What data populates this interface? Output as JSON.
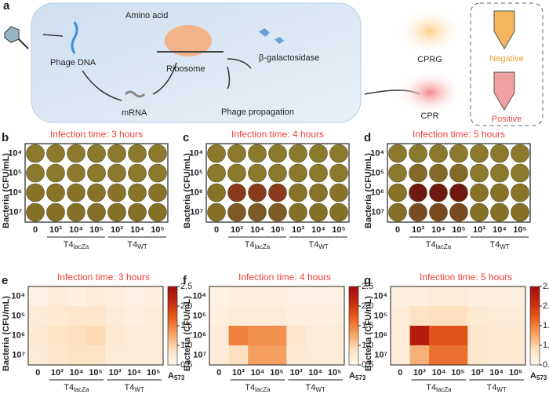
{
  "panel_a": {
    "label": "a",
    "texts": {
      "phage_dna": "Phage DNA",
      "amino_acid": "Amino acid",
      "ribosome": "Ribosome",
      "beta_gal": "β-galactosidase",
      "mrna": "mRNA",
      "propagation": "Phage propagation",
      "cprg": "CPRG",
      "cpr": "CPR",
      "negative": "Negative",
      "positive": "Positive"
    }
  },
  "y_axis_label": "Bacteria (CFU/mL)",
  "row_labels": [
    "10⁴",
    "10⁵",
    "10⁶",
    "10⁷"
  ],
  "column_labels": [
    "0",
    "10³",
    "10⁴",
    "10⁵",
    "10³",
    "10⁴",
    "10⁵"
  ],
  "groups": [
    {
      "base": "T4",
      "sub": "lacZa"
    },
    {
      "base": "T4",
      "sub": "WT"
    }
  ],
  "plates": [
    {
      "label": "b",
      "title": "Infection time: 3 hours",
      "wells": [
        [
          "#8b7a2e",
          "#8b7a2e",
          "#8b7a2e",
          "#8b7a2e",
          "#8b7a2e",
          "#8b7a2e",
          "#8b7a2e"
        ],
        [
          "#8b7a2e",
          "#8b7a2e",
          "#8b7a2e",
          "#8b7a2e",
          "#8b7a2e",
          "#8b7a2e",
          "#8b7a2e"
        ],
        [
          "#887429",
          "#887429",
          "#887429",
          "#887429",
          "#887429",
          "#887429",
          "#887429"
        ],
        [
          "#857028",
          "#857028",
          "#857028",
          "#857028",
          "#857028",
          "#857028",
          "#857028"
        ]
      ]
    },
    {
      "label": "c",
      "title": "Infection time: 4 hours",
      "wells": [
        [
          "#8b7a2e",
          "#8b7a2e",
          "#8b7a2e",
          "#8b7a2e",
          "#8b7a2e",
          "#8b7a2e",
          "#8b7a2e"
        ],
        [
          "#8b7a2e",
          "#8b7a2e",
          "#8b7a2e",
          "#8b7a2e",
          "#8b7a2e",
          "#8b7a2e",
          "#8b7a2e"
        ],
        [
          "#887429",
          "#8a3a1c",
          "#8a3a1c",
          "#8a3a1c",
          "#887429",
          "#887429",
          "#887429"
        ],
        [
          "#857028",
          "#7d5a26",
          "#7d5a26",
          "#7d5a26",
          "#857028",
          "#857028",
          "#857028"
        ]
      ]
    },
    {
      "label": "d",
      "title": "Infection time: 5 hours",
      "wells": [
        [
          "#8b7a2e",
          "#8b7a2e",
          "#8b7a2e",
          "#8b7a2e",
          "#8b7a2e",
          "#8b7a2e",
          "#8b7a2e"
        ],
        [
          "#8b7a2e",
          "#846a28",
          "#846a28",
          "#846a28",
          "#8b7a2e",
          "#8b7a2e",
          "#8b7a2e"
        ],
        [
          "#887429",
          "#6e1a10",
          "#6e1a10",
          "#6e1a10",
          "#887429",
          "#887429",
          "#887429"
        ],
        [
          "#857028",
          "#7a4a20",
          "#7a4a20",
          "#7a4a20",
          "#857028",
          "#857028",
          "#857028"
        ]
      ]
    }
  ],
  "heatmaps": {
    "colorbar": {
      "label": {
        "base": "A",
        "sub": "573"
      },
      "lim": [
        0.5,
        2.5
      ],
      "ticks": [
        0.5,
        {
          "value": 1,
          "label": "1.0"
        },
        1.5,
        {
          "value": 2,
          "label": "2.0"
        },
        2.5
      ]
    },
    "colormap": [
      "#fff8f0",
      "#fde0c0",
      "#f5a060",
      "#e8601c",
      "#c62a10",
      "#9e1010"
    ],
    "panels": [
      {
        "label": "e",
        "title": "Infection time: 3 hours",
        "values": [
          [
            0.6,
            0.7,
            0.65,
            0.7,
            0.65,
            0.6,
            0.65
          ],
          [
            0.7,
            0.75,
            0.8,
            0.8,
            0.7,
            0.65,
            0.7
          ],
          [
            0.75,
            0.85,
            0.9,
            0.95,
            0.75,
            0.7,
            0.7
          ],
          [
            0.7,
            0.8,
            0.85,
            0.85,
            0.7,
            0.7,
            0.7
          ]
        ]
      },
      {
        "label": "f",
        "title": "Infection time: 4 hours",
        "values": [
          [
            0.6,
            0.65,
            0.65,
            0.65,
            0.6,
            0.6,
            0.6
          ],
          [
            0.65,
            0.7,
            0.7,
            0.7,
            0.65,
            0.65,
            0.65
          ],
          [
            0.7,
            1.5,
            1.4,
            1.4,
            0.8,
            0.7,
            0.7
          ],
          [
            0.7,
            0.9,
            1.3,
            1.3,
            0.75,
            0.7,
            0.7
          ]
        ]
      },
      {
        "label": "g",
        "title": "Infection time: 5 hours",
        "values": [
          [
            0.65,
            0.65,
            0.7,
            0.7,
            0.65,
            0.65,
            0.65
          ],
          [
            0.7,
            0.85,
            0.9,
            0.9,
            0.75,
            0.7,
            0.7
          ],
          [
            0.7,
            2.3,
            1.8,
            1.8,
            0.8,
            0.75,
            0.75
          ],
          [
            0.7,
            1.2,
            1.6,
            1.6,
            0.8,
            0.75,
            0.75
          ]
        ]
      }
    ]
  }
}
